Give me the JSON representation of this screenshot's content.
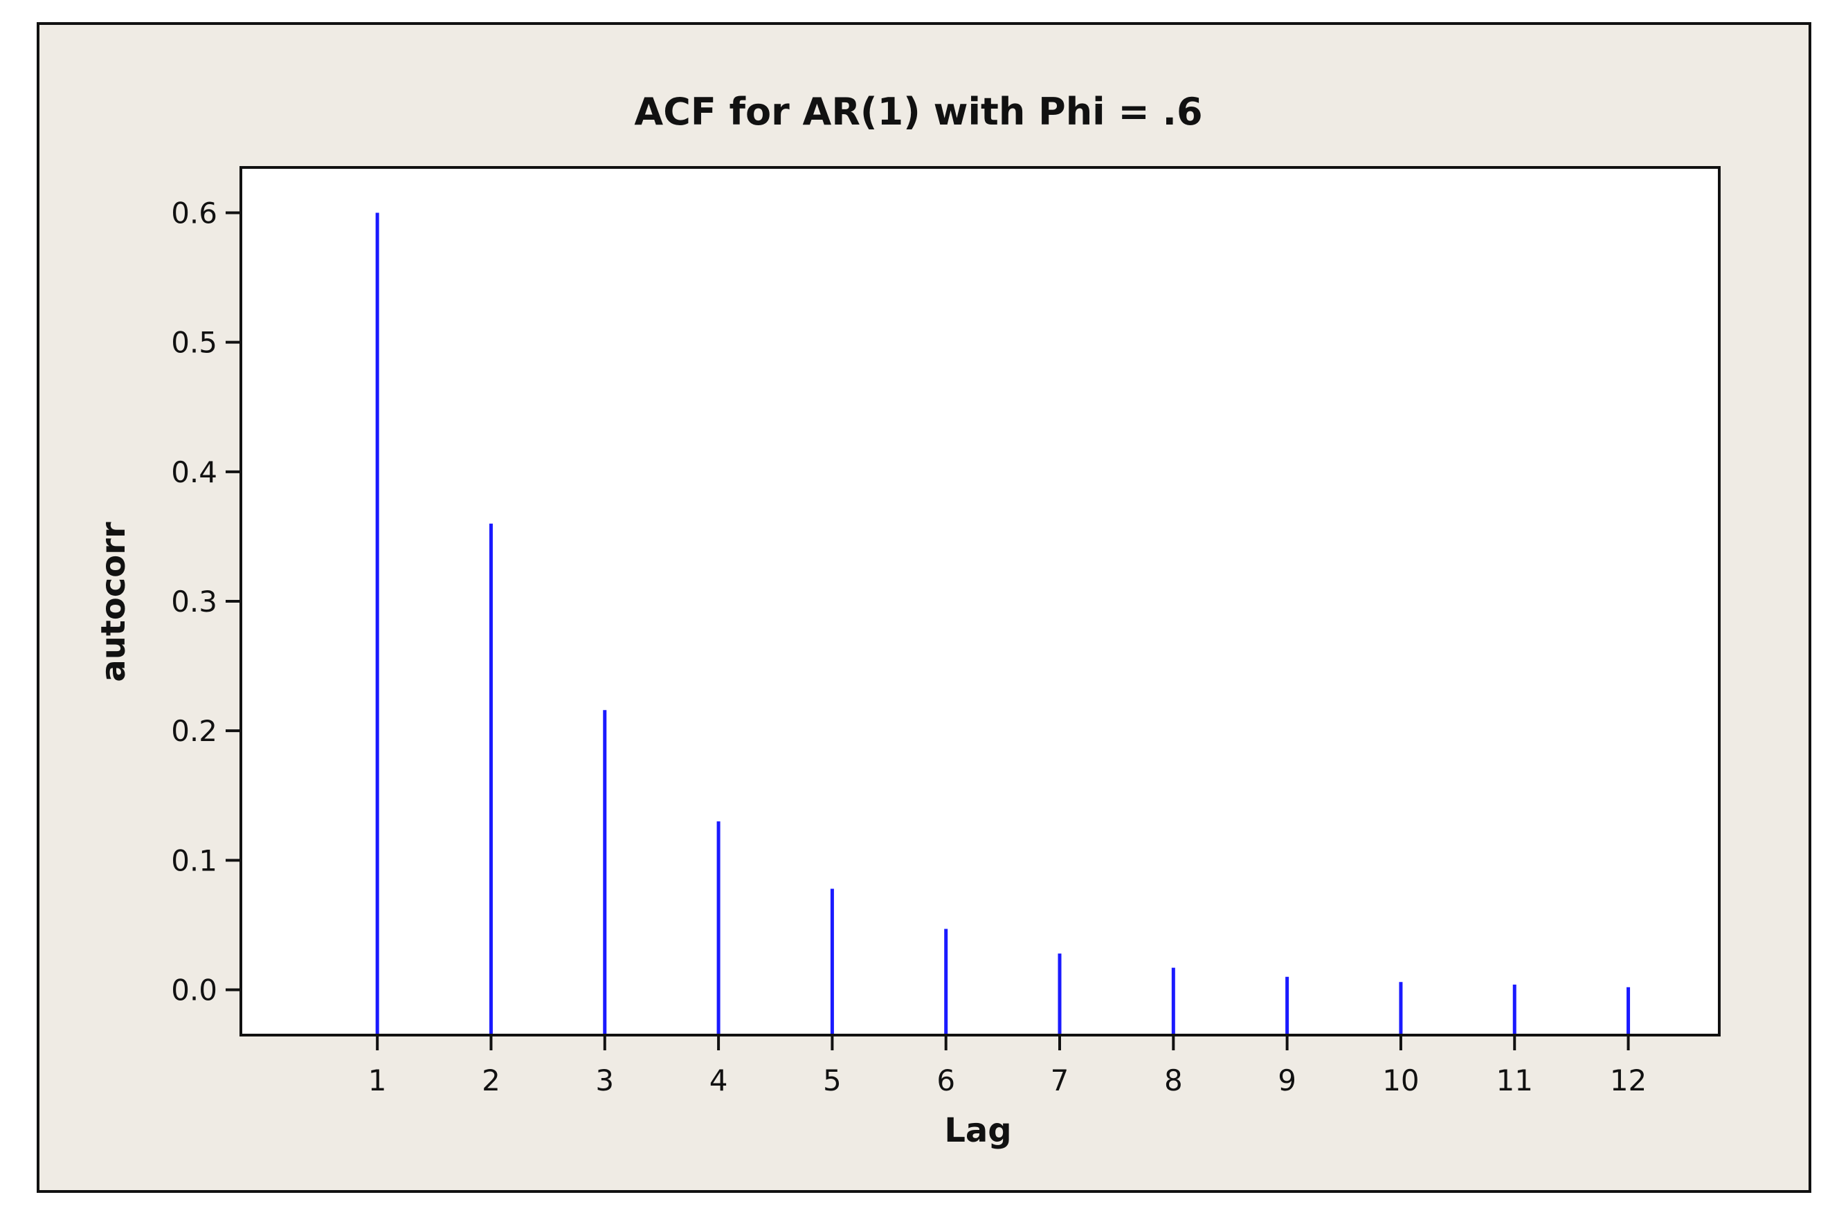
{
  "chart_data": {
    "type": "bar",
    "title": "ACF for AR(1) with Phi = .6",
    "xlabel": "Lag",
    "ylabel": "autocorr",
    "x": [
      1,
      2,
      3,
      4,
      5,
      6,
      7,
      8,
      9,
      10,
      11,
      12
    ],
    "values": [
      0.6,
      0.36,
      0.216,
      0.13,
      0.078,
      0.047,
      0.028,
      0.017,
      0.01,
      0.006,
      0.004,
      0.002
    ],
    "ylim": [
      -0.035,
      0.635
    ],
    "yticks": [
      "0.0",
      "0.1",
      "0.2",
      "0.3",
      "0.4",
      "0.5",
      "0.6"
    ],
    "xticks": [
      "1",
      "2",
      "3",
      "4",
      "5",
      "6",
      "7",
      "8",
      "9",
      "10",
      "11",
      "12"
    ],
    "grid": false,
    "legend": "none",
    "colors": {
      "bar": "#1a1aff",
      "frame_background": "#efebe4",
      "plot_background": "#ffffff",
      "axis": "#111111"
    }
  }
}
